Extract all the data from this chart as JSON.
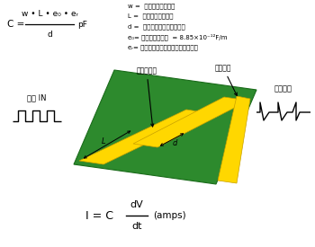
{
  "bg_color": "#ffffff",
  "board_color": "#2d8a2d",
  "board_edge_color": "#1a6b1a",
  "trace_color": "#FFD700",
  "trace_edge_color": "#c8a000",
  "legend_lines": [
    "w =  電路板走線之寬度",
    "L =  電路板走線之長度",
    "d =  兩個電路板走線間之距離",
    "e₀= 空氣之介電常數  = 8.85×10⁻¹²F/m",
    "eᵣ= 相對於空氣之基貪外層之介電常數"
  ],
  "guard_label": "防護走線",
  "trace_label": "電路板走線",
  "voltage_label": "電壓 IN",
  "current_label": "耦合電流"
}
